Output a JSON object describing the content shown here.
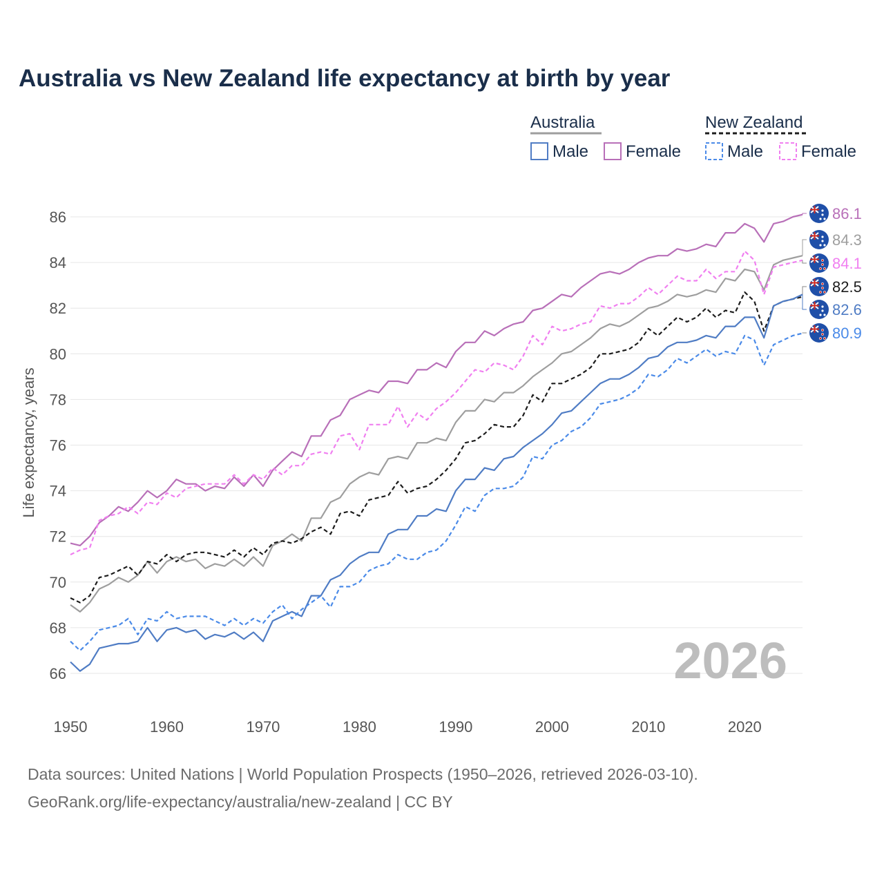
{
  "title": "Australia vs New Zealand life expectancy at birth by year",
  "legend": {
    "australia": "Australia",
    "new_zealand": "New Zealand",
    "male": "Male",
    "female": "Female"
  },
  "year_watermark": "2026",
  "sources": {
    "line1": "Data sources: United Nations | World Population Prospects (1950–2026, retrieved 2026-03-10).",
    "line2": "GeoRank.org/life-expectancy/australia/new-zealand | CC BY"
  },
  "chart_data": {
    "type": "line",
    "title": "Australia vs New Zealand life expectancy at birth by year",
    "xlabel": "",
    "ylabel": "Life expectancy, years",
    "xlim": [
      1950,
      2026
    ],
    "ylim": [
      65,
      87
    ],
    "x_ticks": [
      1950,
      1960,
      1970,
      1980,
      1990,
      2000,
      2010,
      2020
    ],
    "y_ticks": [
      66,
      68,
      70,
      72,
      74,
      76,
      78,
      80,
      82,
      84,
      86
    ],
    "grid": true,
    "legend_position": "top-right",
    "x": [
      1950,
      1951,
      1952,
      1953,
      1954,
      1955,
      1956,
      1957,
      1958,
      1959,
      1960,
      1961,
      1962,
      1963,
      1964,
      1965,
      1966,
      1967,
      1968,
      1969,
      1970,
      1971,
      1972,
      1973,
      1974,
      1975,
      1976,
      1977,
      1978,
      1979,
      1980,
      1981,
      1982,
      1983,
      1984,
      1985,
      1986,
      1987,
      1988,
      1989,
      1990,
      1991,
      1992,
      1993,
      1994,
      1995,
      1996,
      1997,
      1998,
      1999,
      2000,
      2001,
      2002,
      2003,
      2004,
      2005,
      2006,
      2007,
      2008,
      2009,
      2010,
      2011,
      2012,
      2013,
      2014,
      2015,
      2016,
      2017,
      2018,
      2019,
      2020,
      2021,
      2022,
      2023,
      2024,
      2025,
      2026
    ],
    "series": [
      {
        "name": "Australia Female",
        "country": "Australia",
        "sex": "Female",
        "color": "#b86fb8",
        "dash": false,
        "end_label": "86.1",
        "values": [
          71.7,
          71.6,
          72.0,
          72.6,
          72.9,
          73.3,
          73.1,
          73.5,
          74.0,
          73.7,
          74.0,
          74.5,
          74.3,
          74.3,
          74.0,
          74.2,
          74.1,
          74.6,
          74.2,
          74.7,
          74.2,
          74.9,
          75.3,
          75.7,
          75.5,
          76.4,
          76.4,
          77.1,
          77.3,
          78.0,
          78.2,
          78.4,
          78.3,
          78.8,
          78.8,
          78.7,
          79.3,
          79.3,
          79.6,
          79.4,
          80.1,
          80.5,
          80.5,
          81.0,
          80.8,
          81.1,
          81.3,
          81.4,
          81.9,
          82.0,
          82.3,
          82.6,
          82.5,
          82.9,
          83.2,
          83.5,
          83.6,
          83.5,
          83.7,
          84.0,
          84.2,
          84.3,
          84.3,
          84.6,
          84.5,
          84.6,
          84.8,
          84.7,
          85.3,
          85.3,
          85.7,
          85.5,
          84.9,
          85.7,
          85.8,
          86.0,
          86.1
        ]
      },
      {
        "name": "Australia (total)",
        "country": "Australia",
        "sex": "Total",
        "color": "#9e9e9e",
        "dash": false,
        "end_label": "84.3",
        "values": [
          69.0,
          68.7,
          69.1,
          69.7,
          69.9,
          70.2,
          70.0,
          70.3,
          70.9,
          70.4,
          70.9,
          71.1,
          70.9,
          71.0,
          70.6,
          70.8,
          70.7,
          71.0,
          70.7,
          71.1,
          70.7,
          71.6,
          71.8,
          72.1,
          71.8,
          72.8,
          72.8,
          73.5,
          73.7,
          74.3,
          74.6,
          74.8,
          74.7,
          75.4,
          75.5,
          75.4,
          76.1,
          76.1,
          76.3,
          76.2,
          77.0,
          77.5,
          77.5,
          78.0,
          77.9,
          78.3,
          78.3,
          78.6,
          79.0,
          79.3,
          79.6,
          80.0,
          80.1,
          80.4,
          80.7,
          81.1,
          81.3,
          81.2,
          81.4,
          81.7,
          82.0,
          82.1,
          82.3,
          82.6,
          82.5,
          82.6,
          82.8,
          82.7,
          83.3,
          83.2,
          83.7,
          83.6,
          82.8,
          83.9,
          84.1,
          84.2,
          84.3
        ]
      },
      {
        "name": "New Zealand Female",
        "country": "New Zealand",
        "sex": "Female",
        "color": "#f07ff0",
        "dash": true,
        "end_label": "84.1",
        "values": [
          71.2,
          71.4,
          71.5,
          72.7,
          72.9,
          73.0,
          73.3,
          73.0,
          73.5,
          73.4,
          73.9,
          73.7,
          74.1,
          74.2,
          74.3,
          74.3,
          74.3,
          74.7,
          74.3,
          74.7,
          74.5,
          75.0,
          74.7,
          75.1,
          75.1,
          75.6,
          75.7,
          75.6,
          76.4,
          76.5,
          75.8,
          76.9,
          76.9,
          76.9,
          77.7,
          76.8,
          77.4,
          77.1,
          77.6,
          77.9,
          78.3,
          78.8,
          79.3,
          79.2,
          79.6,
          79.5,
          79.3,
          79.9,
          80.8,
          80.4,
          81.2,
          81.0,
          81.1,
          81.3,
          81.4,
          82.1,
          82.0,
          82.2,
          82.2,
          82.5,
          82.9,
          82.6,
          83.0,
          83.4,
          83.2,
          83.2,
          83.7,
          83.3,
          83.6,
          83.6,
          84.5,
          84.1,
          82.6,
          83.8,
          83.9,
          84.0,
          84.1
        ]
      },
      {
        "name": "New Zealand (total)",
        "country": "New Zealand",
        "sex": "Total",
        "color": "#1c1c1c",
        "dash": true,
        "end_label": "82.5",
        "values": [
          69.3,
          69.1,
          69.4,
          70.2,
          70.3,
          70.5,
          70.7,
          70.3,
          70.9,
          70.8,
          71.2,
          70.9,
          71.2,
          71.3,
          71.3,
          71.2,
          71.1,
          71.4,
          71.1,
          71.5,
          71.2,
          71.7,
          71.8,
          71.7,
          71.9,
          72.2,
          72.4,
          72.1,
          73.0,
          73.1,
          72.9,
          73.6,
          73.7,
          73.8,
          74.4,
          73.9,
          74.1,
          74.2,
          74.5,
          74.9,
          75.4,
          76.1,
          76.2,
          76.5,
          76.9,
          76.8,
          76.8,
          77.3,
          78.2,
          77.9,
          78.7,
          78.7,
          78.9,
          79.1,
          79.4,
          80.0,
          80.0,
          80.1,
          80.2,
          80.5,
          81.1,
          80.8,
          81.2,
          81.6,
          81.4,
          81.6,
          82.0,
          81.6,
          81.9,
          81.8,
          82.7,
          82.3,
          81.0,
          82.1,
          82.3,
          82.4,
          82.5
        ]
      },
      {
        "name": "Australia Male",
        "country": "Australia",
        "sex": "Male",
        "color": "#4f7cc4",
        "dash": false,
        "end_label": "82.6",
        "values": [
          66.5,
          66.1,
          66.4,
          67.1,
          67.2,
          67.3,
          67.3,
          67.4,
          68.0,
          67.4,
          67.9,
          68.0,
          67.8,
          67.9,
          67.5,
          67.7,
          67.6,
          67.8,
          67.5,
          67.8,
          67.4,
          68.3,
          68.5,
          68.7,
          68.5,
          69.4,
          69.4,
          70.1,
          70.3,
          70.8,
          71.1,
          71.3,
          71.3,
          72.1,
          72.3,
          72.3,
          72.9,
          72.9,
          73.2,
          73.1,
          74.0,
          74.5,
          74.5,
          75.0,
          74.9,
          75.4,
          75.5,
          75.9,
          76.2,
          76.5,
          76.9,
          77.4,
          77.5,
          77.9,
          78.3,
          78.7,
          78.9,
          78.9,
          79.1,
          79.4,
          79.8,
          79.9,
          80.3,
          80.5,
          80.5,
          80.6,
          80.8,
          80.7,
          81.2,
          81.2,
          81.6,
          81.6,
          80.7,
          82.1,
          82.3,
          82.4,
          82.6
        ]
      },
      {
        "name": "New Zealand Male",
        "country": "New Zealand",
        "sex": "Male",
        "color": "#4a8ae8",
        "dash": true,
        "end_label": "80.9",
        "values": [
          67.4,
          67.0,
          67.4,
          67.9,
          68.0,
          68.1,
          68.4,
          67.7,
          68.4,
          68.3,
          68.7,
          68.4,
          68.5,
          68.5,
          68.5,
          68.3,
          68.1,
          68.4,
          68.1,
          68.4,
          68.2,
          68.7,
          69.0,
          68.4,
          68.8,
          69.1,
          69.4,
          68.9,
          69.8,
          69.8,
          70.0,
          70.5,
          70.7,
          70.8,
          71.2,
          71.0,
          71.0,
          71.3,
          71.4,
          71.8,
          72.5,
          73.3,
          73.1,
          73.8,
          74.1,
          74.1,
          74.2,
          74.6,
          75.5,
          75.4,
          76.0,
          76.2,
          76.6,
          76.8,
          77.2,
          77.8,
          77.9,
          78.0,
          78.2,
          78.5,
          79.1,
          79.0,
          79.3,
          79.8,
          79.6,
          79.9,
          80.2,
          79.9,
          80.1,
          80.0,
          80.8,
          80.6,
          79.5,
          80.4,
          80.6,
          80.8,
          80.9
        ]
      }
    ]
  }
}
